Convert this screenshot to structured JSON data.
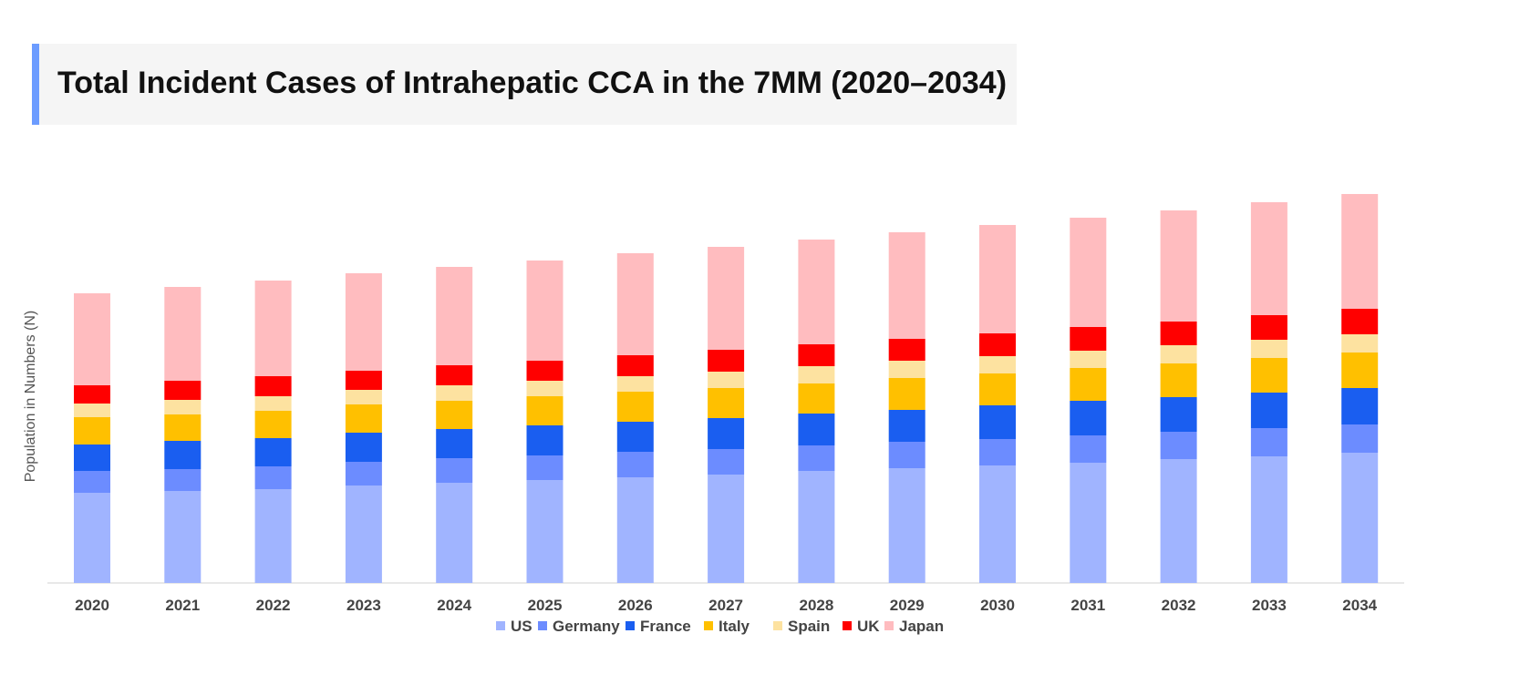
{
  "chart_data": {
    "type": "bar",
    "stacked": true,
    "title": "Total Incident Cases of Intrahepatic CCA in the 7MM (2020–2034)",
    "xlabel": "",
    "ylabel": "Population in Numbers (N)",
    "note": "No y-axis tick values are printed; values are relative estimates",
    "grid": false,
    "legend_position": "bottom",
    "categories": [
      "2020",
      "2021",
      "2022",
      "2023",
      "2024",
      "2025",
      "2026",
      "2027",
      "2028",
      "2029",
      "2030",
      "2031",
      "2032",
      "2033",
      "2034"
    ],
    "series": [
      {
        "name": "US",
        "color": "#a0b4ff",
        "values": [
          99,
          101,
          103,
          107,
          110,
          113,
          116,
          119,
          123,
          126,
          129,
          132,
          136,
          139,
          143
        ]
      },
      {
        "name": "Germany",
        "color": "#6c8cff",
        "values": [
          24,
          24,
          25,
          26,
          27,
          27,
          28,
          28,
          28,
          29,
          29,
          30,
          30,
          31,
          31
        ]
      },
      {
        "name": "France",
        "color": "#1a5ef0",
        "values": [
          29,
          31,
          31,
          32,
          32,
          33,
          33,
          34,
          35,
          35,
          37,
          38,
          38,
          39,
          40
        ]
      },
      {
        "name": "Italy",
        "color": "#ffc000",
        "values": [
          30,
          29,
          30,
          31,
          31,
          32,
          33,
          33,
          33,
          35,
          35,
          36,
          37,
          38,
          39
        ]
      },
      {
        "name": "Spain",
        "color": "#fde2a0",
        "values": [
          15,
          16,
          16,
          16,
          17,
          17,
          17,
          18,
          19,
          19,
          19,
          19,
          20,
          20,
          20
        ]
      },
      {
        "name": "UK",
        "color": "#ff0000",
        "values": [
          20,
          21,
          22,
          21,
          22,
          22,
          23,
          24,
          24,
          24,
          25,
          26,
          26,
          27,
          28
        ]
      },
      {
        "name": "Japan",
        "color": "#ffbcbf",
        "values": [
          101,
          103,
          105,
          107,
          108,
          110,
          112,
          113,
          115,
          117,
          119,
          120,
          122,
          124,
          126
        ]
      }
    ]
  }
}
